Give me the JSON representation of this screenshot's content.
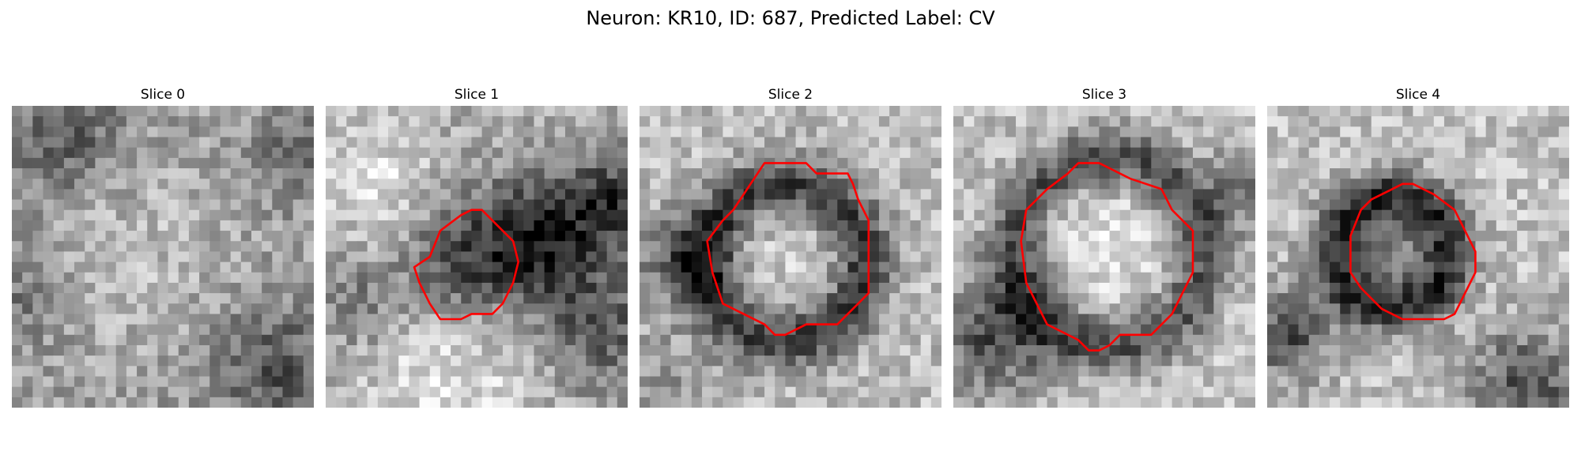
{
  "figure": {
    "title": "Neuron: KR10, ID: 687, Predicted Label: CV",
    "contour_color": "#ff0000"
  },
  "panels": [
    {
      "title": "Slice 0",
      "has_contour": false
    },
    {
      "title": "Slice 1",
      "has_contour": true
    },
    {
      "title": "Slice 2",
      "has_contour": true
    },
    {
      "title": "Slice 3",
      "has_contour": true
    },
    {
      "title": "Slice 4",
      "has_contour": true
    }
  ]
}
